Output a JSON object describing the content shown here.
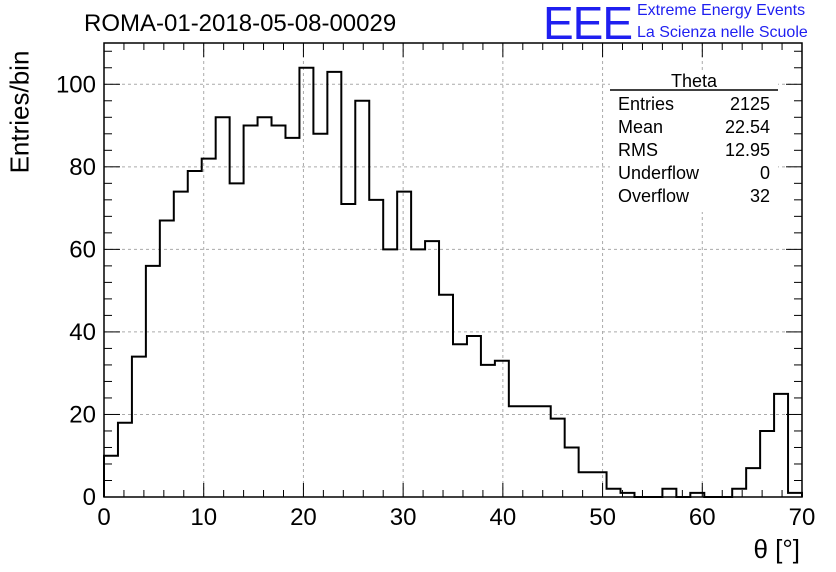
{
  "header": {
    "run_title": "ROMA-01-2018-05-08-00029"
  },
  "logo": {
    "mark": "EEE",
    "line1": "Extreme Energy Events",
    "line2": "La Scienza nelle Scuole"
  },
  "chart_data": {
    "type": "histogram",
    "xlabel": "θ [°]",
    "ylabel": "Entries/bin",
    "xlim": [
      0,
      70
    ],
    "ylim": [
      0,
      110
    ],
    "grid": true,
    "x_ticks": [
      0,
      10,
      20,
      30,
      40,
      50,
      60,
      70
    ],
    "y_ticks": [
      0,
      20,
      40,
      60,
      80,
      100
    ],
    "bin_edges_start": 0,
    "bin_width": 1.4,
    "values": [
      10,
      18,
      34,
      56,
      67,
      74,
      79,
      82,
      92,
      76,
      90,
      92,
      90,
      87,
      104,
      88,
      103,
      71,
      96,
      72,
      60,
      74,
      60,
      62,
      49,
      37,
      39,
      32,
      33,
      22,
      22,
      22,
      19,
      12,
      6,
      6,
      2,
      1,
      0,
      0,
      2,
      0,
      1,
      0,
      0,
      2,
      7,
      16,
      25,
      1
    ],
    "stats_box": {
      "title": "Theta",
      "rows": [
        {
          "label": "Entries",
          "value": "2125"
        },
        {
          "label": "Mean",
          "value": "22.54"
        },
        {
          "label": "RMS",
          "value": "12.95"
        },
        {
          "label": "Underflow",
          "value": "0"
        },
        {
          "label": "Overflow",
          "value": "32"
        }
      ],
      "placement": "top-right"
    }
  }
}
